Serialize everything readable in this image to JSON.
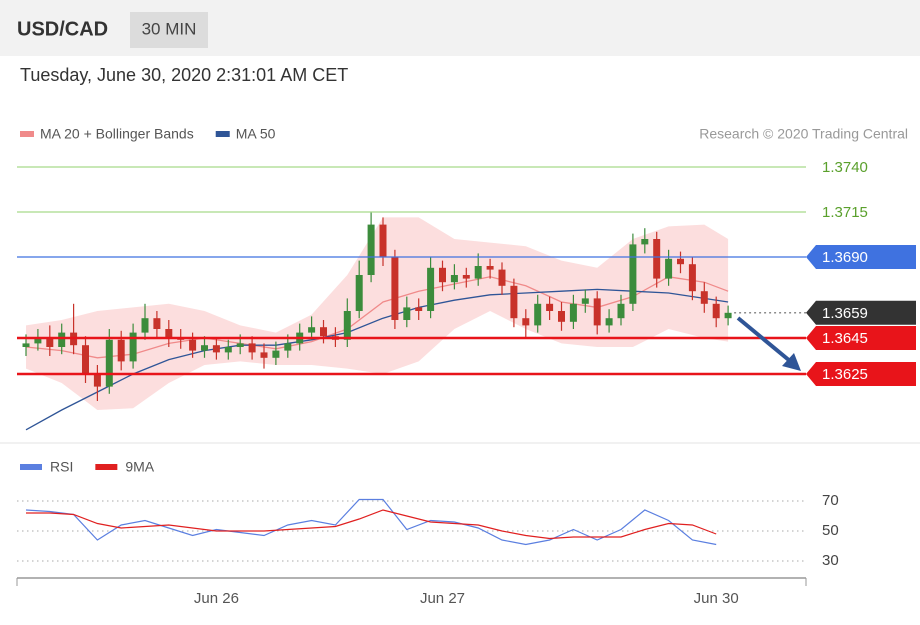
{
  "header": {
    "symbol": "USD/CAD",
    "timeframe": "30 MIN",
    "date": "Tuesday, June 30, 2020 2:31:01 AM CET"
  },
  "chart_data": [
    {
      "type": "candlestick",
      "categories": [
        null,
        null,
        null,
        null,
        null,
        null,
        null,
        null,
        null,
        null,
        null,
        null,
        null,
        null,
        null,
        null,
        "Jun 26",
        null,
        null,
        null,
        null,
        null,
        null,
        null,
        null,
        null,
        null,
        null,
        null,
        null,
        null,
        null,
        null,
        null,
        null,
        "Jun 27",
        null,
        null,
        null,
        null,
        null,
        null,
        null,
        null,
        null,
        null,
        null,
        null,
        null,
        null,
        null,
        null,
        null,
        null,
        null,
        null,
        null,
        null,
        "Jun 30",
        null
      ],
      "open": [
        1.364,
        1.3642,
        1.3645,
        1.364,
        1.3648,
        1.3641,
        1.3625,
        1.3618,
        1.3644,
        1.3632,
        1.3648,
        1.3656,
        1.365,
        1.3645,
        1.3644,
        1.3638,
        1.3641,
        1.3637,
        1.364,
        1.3642,
        1.3637,
        1.3634,
        1.3638,
        1.3642,
        1.3648,
        1.3651,
        1.3646,
        1.3644,
        1.366,
        1.368,
        1.3708,
        1.369,
        1.3655,
        1.3662,
        1.366,
        1.3684,
        1.3676,
        1.368,
        1.3678,
        1.3685,
        1.3683,
        1.3674,
        1.3656,
        1.3652,
        1.3664,
        1.366,
        1.3654,
        1.3664,
        1.3667,
        1.3652,
        1.3656,
        1.3664,
        1.3697,
        1.37,
        1.3678,
        1.3689,
        1.3686,
        1.3671,
        1.3664,
        1.3656
      ],
      "high": [
        1.3647,
        1.365,
        1.3652,
        1.3653,
        1.3664,
        1.3646,
        1.363,
        1.365,
        1.3649,
        1.3653,
        1.3664,
        1.366,
        1.3655,
        1.365,
        1.3648,
        1.3646,
        1.3645,
        1.3644,
        1.3647,
        1.3646,
        1.3642,
        1.3643,
        1.3647,
        1.3653,
        1.3657,
        1.3655,
        1.3651,
        1.3667,
        1.3688,
        1.3715,
        1.3712,
        1.3694,
        1.3668,
        1.3667,
        1.369,
        1.3688,
        1.3686,
        1.3684,
        1.3692,
        1.3689,
        1.3687,
        1.3678,
        1.3661,
        1.3669,
        1.3668,
        1.3665,
        1.3669,
        1.3672,
        1.3671,
        1.3661,
        1.3669,
        1.3703,
        1.3706,
        1.3704,
        1.3694,
        1.3693,
        1.369,
        1.3676,
        1.3668,
        1.3663
      ],
      "low": [
        1.3635,
        1.3638,
        1.3635,
        1.3636,
        1.3636,
        1.362,
        1.361,
        1.3614,
        1.3627,
        1.3628,
        1.3644,
        1.3645,
        1.364,
        1.3639,
        1.3634,
        1.3634,
        1.3633,
        1.3633,
        1.3636,
        1.3633,
        1.3628,
        1.363,
        1.3634,
        1.3638,
        1.3644,
        1.3642,
        1.364,
        1.364,
        1.3656,
        1.3676,
        1.3685,
        1.365,
        1.3651,
        1.3655,
        1.3656,
        1.3671,
        1.3672,
        1.3673,
        1.3674,
        1.3678,
        1.3669,
        1.3651,
        1.3645,
        1.3648,
        1.3655,
        1.3649,
        1.365,
        1.3659,
        1.3647,
        1.3648,
        1.3652,
        1.366,
        1.3692,
        1.3673,
        1.3674,
        1.3681,
        1.3666,
        1.3659,
        1.3651,
        1.3652
      ],
      "close": [
        1.3642,
        1.3645,
        1.364,
        1.3648,
        1.3641,
        1.3625,
        1.3618,
        1.3644,
        1.3632,
        1.3648,
        1.3656,
        1.365,
        1.3645,
        1.3644,
        1.3638,
        1.3641,
        1.3637,
        1.364,
        1.3642,
        1.3637,
        1.3634,
        1.3638,
        1.3642,
        1.3648,
        1.3651,
        1.3646,
        1.3644,
        1.366,
        1.368,
        1.3708,
        1.369,
        1.3655,
        1.3662,
        1.366,
        1.3684,
        1.3676,
        1.368,
        1.3678,
        1.3685,
        1.3683,
        1.3674,
        1.3656,
        1.3652,
        1.3664,
        1.366,
        1.3654,
        1.3664,
        1.3667,
        1.3652,
        1.3656,
        1.3664,
        1.3697,
        1.37,
        1.3678,
        1.3689,
        1.3686,
        1.3671,
        1.3664,
        1.3656,
        1.3659
      ],
      "up_color": "#3c8c3c",
      "down_color": "#c8322a",
      "ylim": [
        1.359,
        1.375
      ],
      "source": "Research © 2020 Trading Central",
      "overlays": [
        {
          "name": "MA 20 + Bollinger Bands",
          "color": "#f08a8a",
          "band_color": "#fbd3d3",
          "x": [
            0,
            3,
            6,
            9,
            12,
            15,
            18,
            21,
            24,
            27,
            30,
            33,
            36,
            39,
            42,
            45,
            48,
            51,
            54,
            57,
            59
          ],
          "values": [
            1.364,
            1.3638,
            1.3634,
            1.3636,
            1.3642,
            1.3645,
            1.3642,
            1.3639,
            1.3643,
            1.365,
            1.3665,
            1.3671,
            1.3675,
            1.3679,
            1.3674,
            1.3665,
            1.3662,
            1.3668,
            1.3679,
            1.3676,
            1.3671
          ],
          "upper": [
            1.3652,
            1.3655,
            1.366,
            1.3662,
            1.3664,
            1.366,
            1.3652,
            1.3648,
            1.3658,
            1.368,
            1.3712,
            1.3712,
            1.37,
            1.3698,
            1.3696,
            1.3688,
            1.3684,
            1.37,
            1.3707,
            1.3708,
            1.37
          ],
          "lower": [
            1.3628,
            1.362,
            1.3605,
            1.3606,
            1.362,
            1.363,
            1.3632,
            1.363,
            1.363,
            1.3628,
            1.3625,
            1.3632,
            1.365,
            1.366,
            1.365,
            1.3642,
            1.364,
            1.364,
            1.365,
            1.3645,
            1.3643
          ]
        },
        {
          "name": "MA 50",
          "color": "#2f5597",
          "x": [
            0,
            3,
            6,
            9,
            12,
            15,
            18,
            21,
            24,
            27,
            30,
            33,
            36,
            39,
            42,
            45,
            48,
            51,
            54,
            57,
            59
          ],
          "values": [
            1.3594,
            1.3605,
            1.3615,
            1.3625,
            1.3633,
            1.3638,
            1.3641,
            1.3641,
            1.3644,
            1.3648,
            1.3656,
            1.3662,
            1.3666,
            1.3669,
            1.367,
            1.3671,
            1.3672,
            1.3671,
            1.367,
            1.3667,
            1.3665
          ]
        }
      ],
      "levels": [
        {
          "value": 1.374,
          "label": "1.3740",
          "color": "#a6d98a",
          "text_color": "#5aa02c",
          "tag": false,
          "line": "solid"
        },
        {
          "value": 1.3715,
          "label": "1.3715",
          "color": "#a6d98a",
          "text_color": "#5aa02c",
          "tag": false,
          "line": "solid"
        },
        {
          "value": 1.369,
          "label": "1.3690",
          "color": "#3f72e0",
          "text_color": "#ffffff",
          "tag": true,
          "line": "solid"
        },
        {
          "value": 1.3659,
          "label": "1.3659",
          "color": "#333333",
          "text_color": "#ffffff",
          "tag": true,
          "line": "dotted"
        },
        {
          "value": 1.3645,
          "label": "1.3645",
          "color": "#e8141a",
          "text_color": "#ffffff",
          "tag": true,
          "line": "thick"
        },
        {
          "value": 1.3625,
          "label": "1.3625",
          "color": "#e8141a",
          "text_color": "#ffffff",
          "tag": true,
          "line": "thick"
        }
      ]
    },
    {
      "type": "line",
      "ylim": [
        20,
        80
      ],
      "yticks": [
        30,
        50,
        70
      ],
      "series": [
        {
          "name": "RSI",
          "color": "#5b7fe0",
          "x": [
            0,
            2,
            4,
            6,
            8,
            10,
            12,
            14,
            16,
            18,
            20,
            22,
            24,
            26,
            28,
            30,
            32,
            34,
            36,
            38,
            40,
            42,
            44,
            46,
            48,
            50,
            52,
            54,
            56,
            58
          ],
          "values": [
            64,
            63,
            61,
            44,
            54,
            57,
            52,
            47,
            51,
            49,
            47,
            54,
            57,
            54,
            71,
            71,
            51,
            57,
            56,
            52,
            44,
            41,
            44,
            51,
            44,
            51,
            64,
            57,
            44,
            41
          ]
        },
        {
          "name": "9MA",
          "color": "#e02020",
          "x": [
            0,
            2,
            4,
            6,
            8,
            10,
            12,
            14,
            16,
            18,
            20,
            22,
            24,
            26,
            28,
            30,
            32,
            34,
            36,
            38,
            40,
            42,
            44,
            46,
            48,
            50,
            52,
            54,
            56,
            58
          ],
          "values": [
            62,
            62,
            61,
            55,
            52,
            53,
            54,
            52,
            50,
            50,
            50,
            51,
            52,
            53,
            58,
            64,
            60,
            56,
            55,
            54,
            50,
            47,
            45,
            46,
            46,
            46,
            51,
            55,
            54,
            48
          ]
        }
      ]
    }
  ]
}
